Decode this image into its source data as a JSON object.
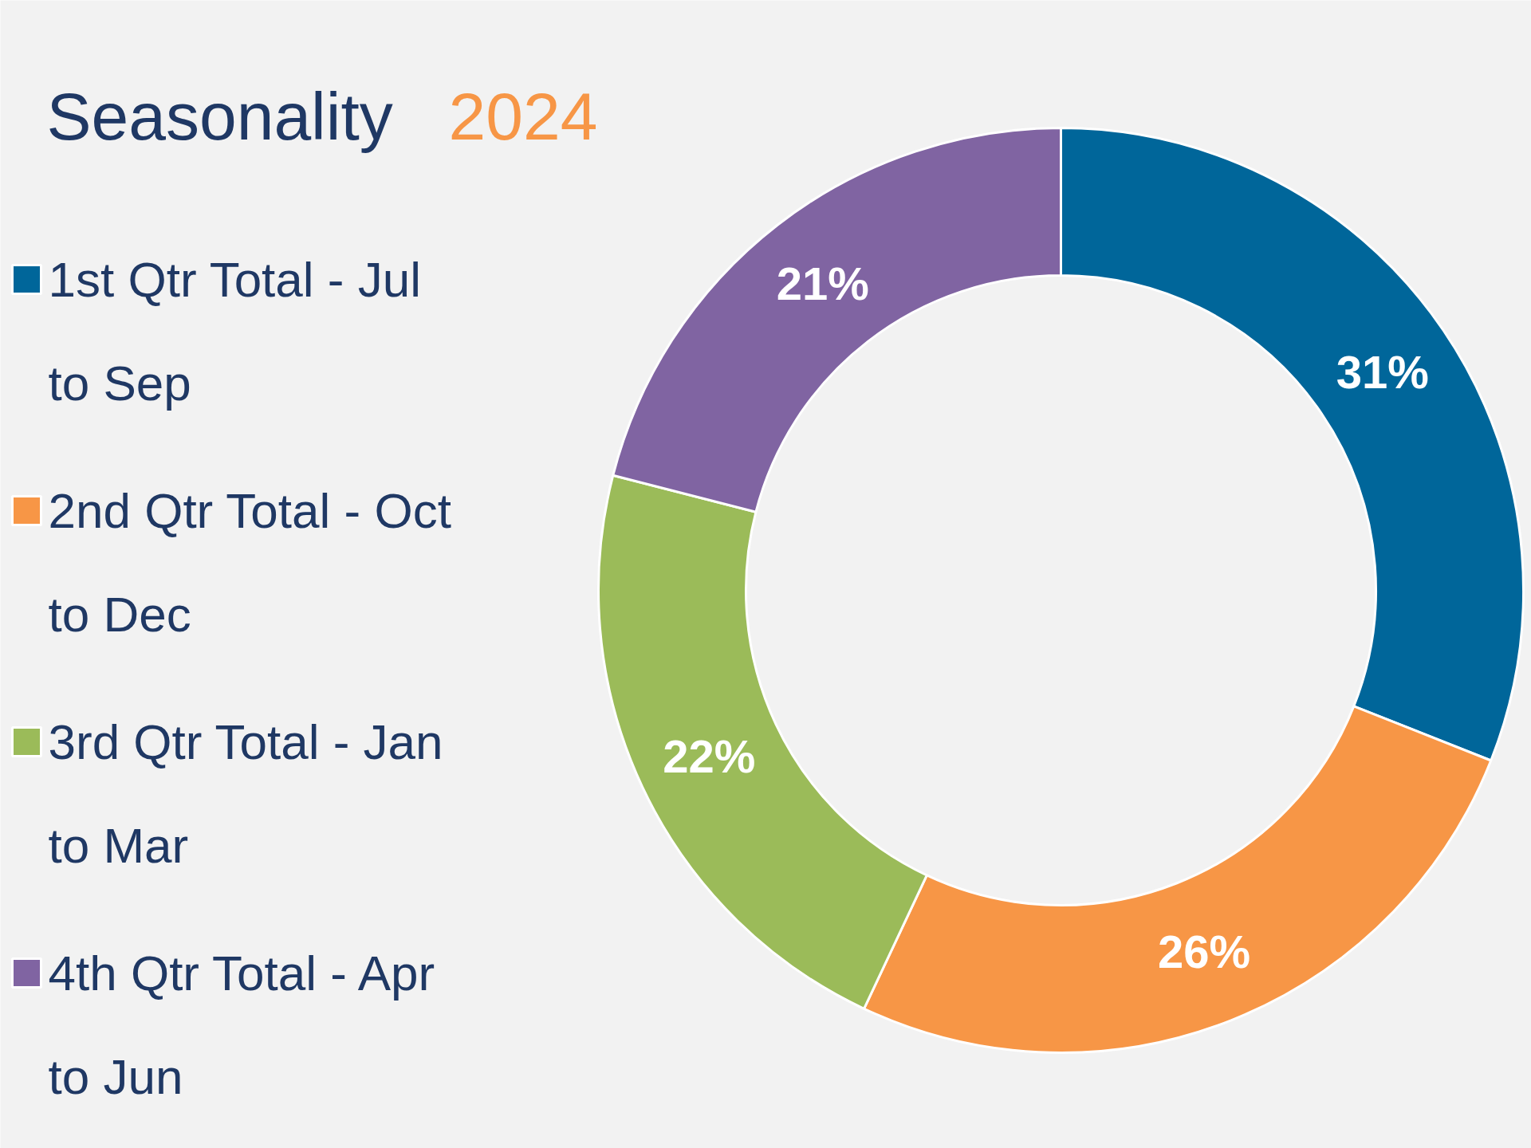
{
  "chart_data": {
    "type": "donut",
    "title": "Seasonality 2024",
    "categories": [
      "1st Qtr Total - Jul to Sep",
      "2nd Qtr Total - Oct to Dec",
      "3rd Qtr Total - Jan to Mar",
      "4th Qtr Total - Apr to Jun"
    ],
    "values": [
      31,
      26,
      22,
      21
    ],
    "colors": [
      "#00669a",
      "#f79646",
      "#9bbb59",
      "#8064a2"
    ],
    "value_labels": [
      "31%",
      "26%",
      "22%",
      "21%"
    ],
    "legend": "left"
  }
}
